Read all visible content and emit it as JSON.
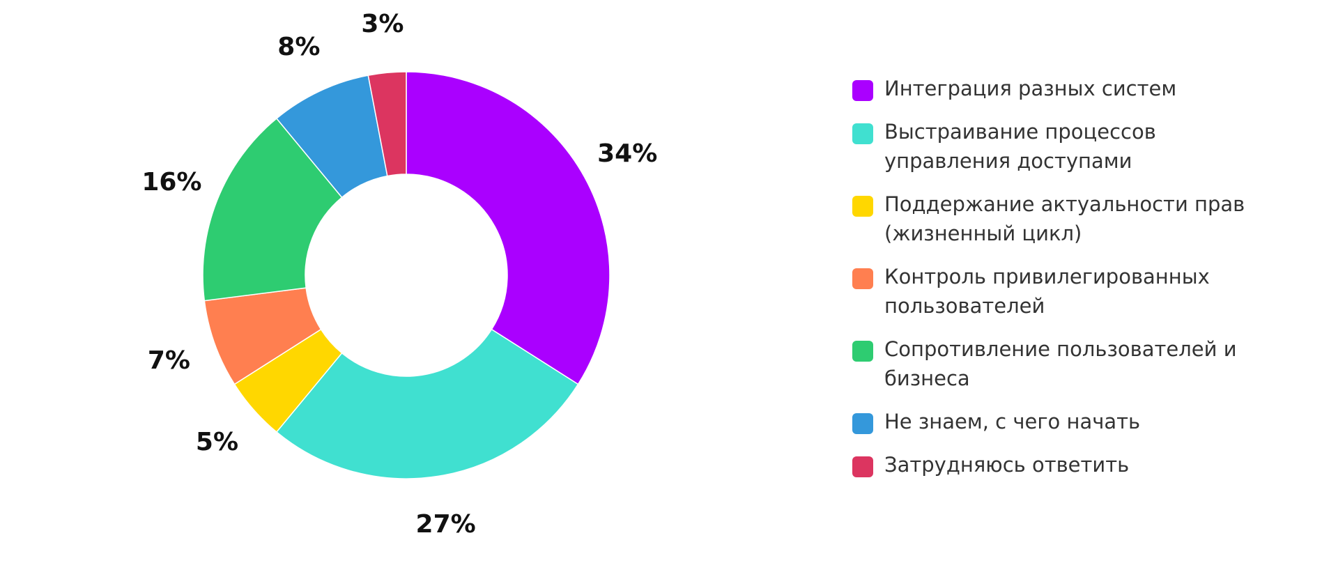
{
  "chart_data": {
    "type": "pie",
    "variant": "donut",
    "title": "",
    "legend_position": "right",
    "value_format": "{v}%",
    "categories": [
      "Интеграция разных систем",
      "Выстраивание процессов управления доступами",
      "Поддержание актуальности прав (жизненный цикл)",
      "Контроль привилегированных пользователей",
      "Сопротивление пользователей и бизнеса",
      "Не знаем, с чего начать",
      "Затрудняюсь ответить"
    ],
    "legend_lines": [
      [
        "Интеграция разных систем"
      ],
      [
        "Выстраивание процессов",
        "управления доступами"
      ],
      [
        "Поддержание актуальности прав",
        "(жизненный цикл)"
      ],
      [
        "Контроль привилегированных",
        "пользователей"
      ],
      [
        "Сопротивление пользователей и",
        "бизнеса"
      ],
      [
        "Не знаем, с чего начать"
      ],
      [
        "Затрудняюсь ответить"
      ]
    ],
    "values": [
      34,
      27,
      5,
      7,
      16,
      8,
      3
    ],
    "colors": [
      "#aa00ff",
      "#40e0d0",
      "#ffd700",
      "#ff7f50",
      "#2ecc71",
      "#3498db",
      "#dc3560"
    ]
  }
}
